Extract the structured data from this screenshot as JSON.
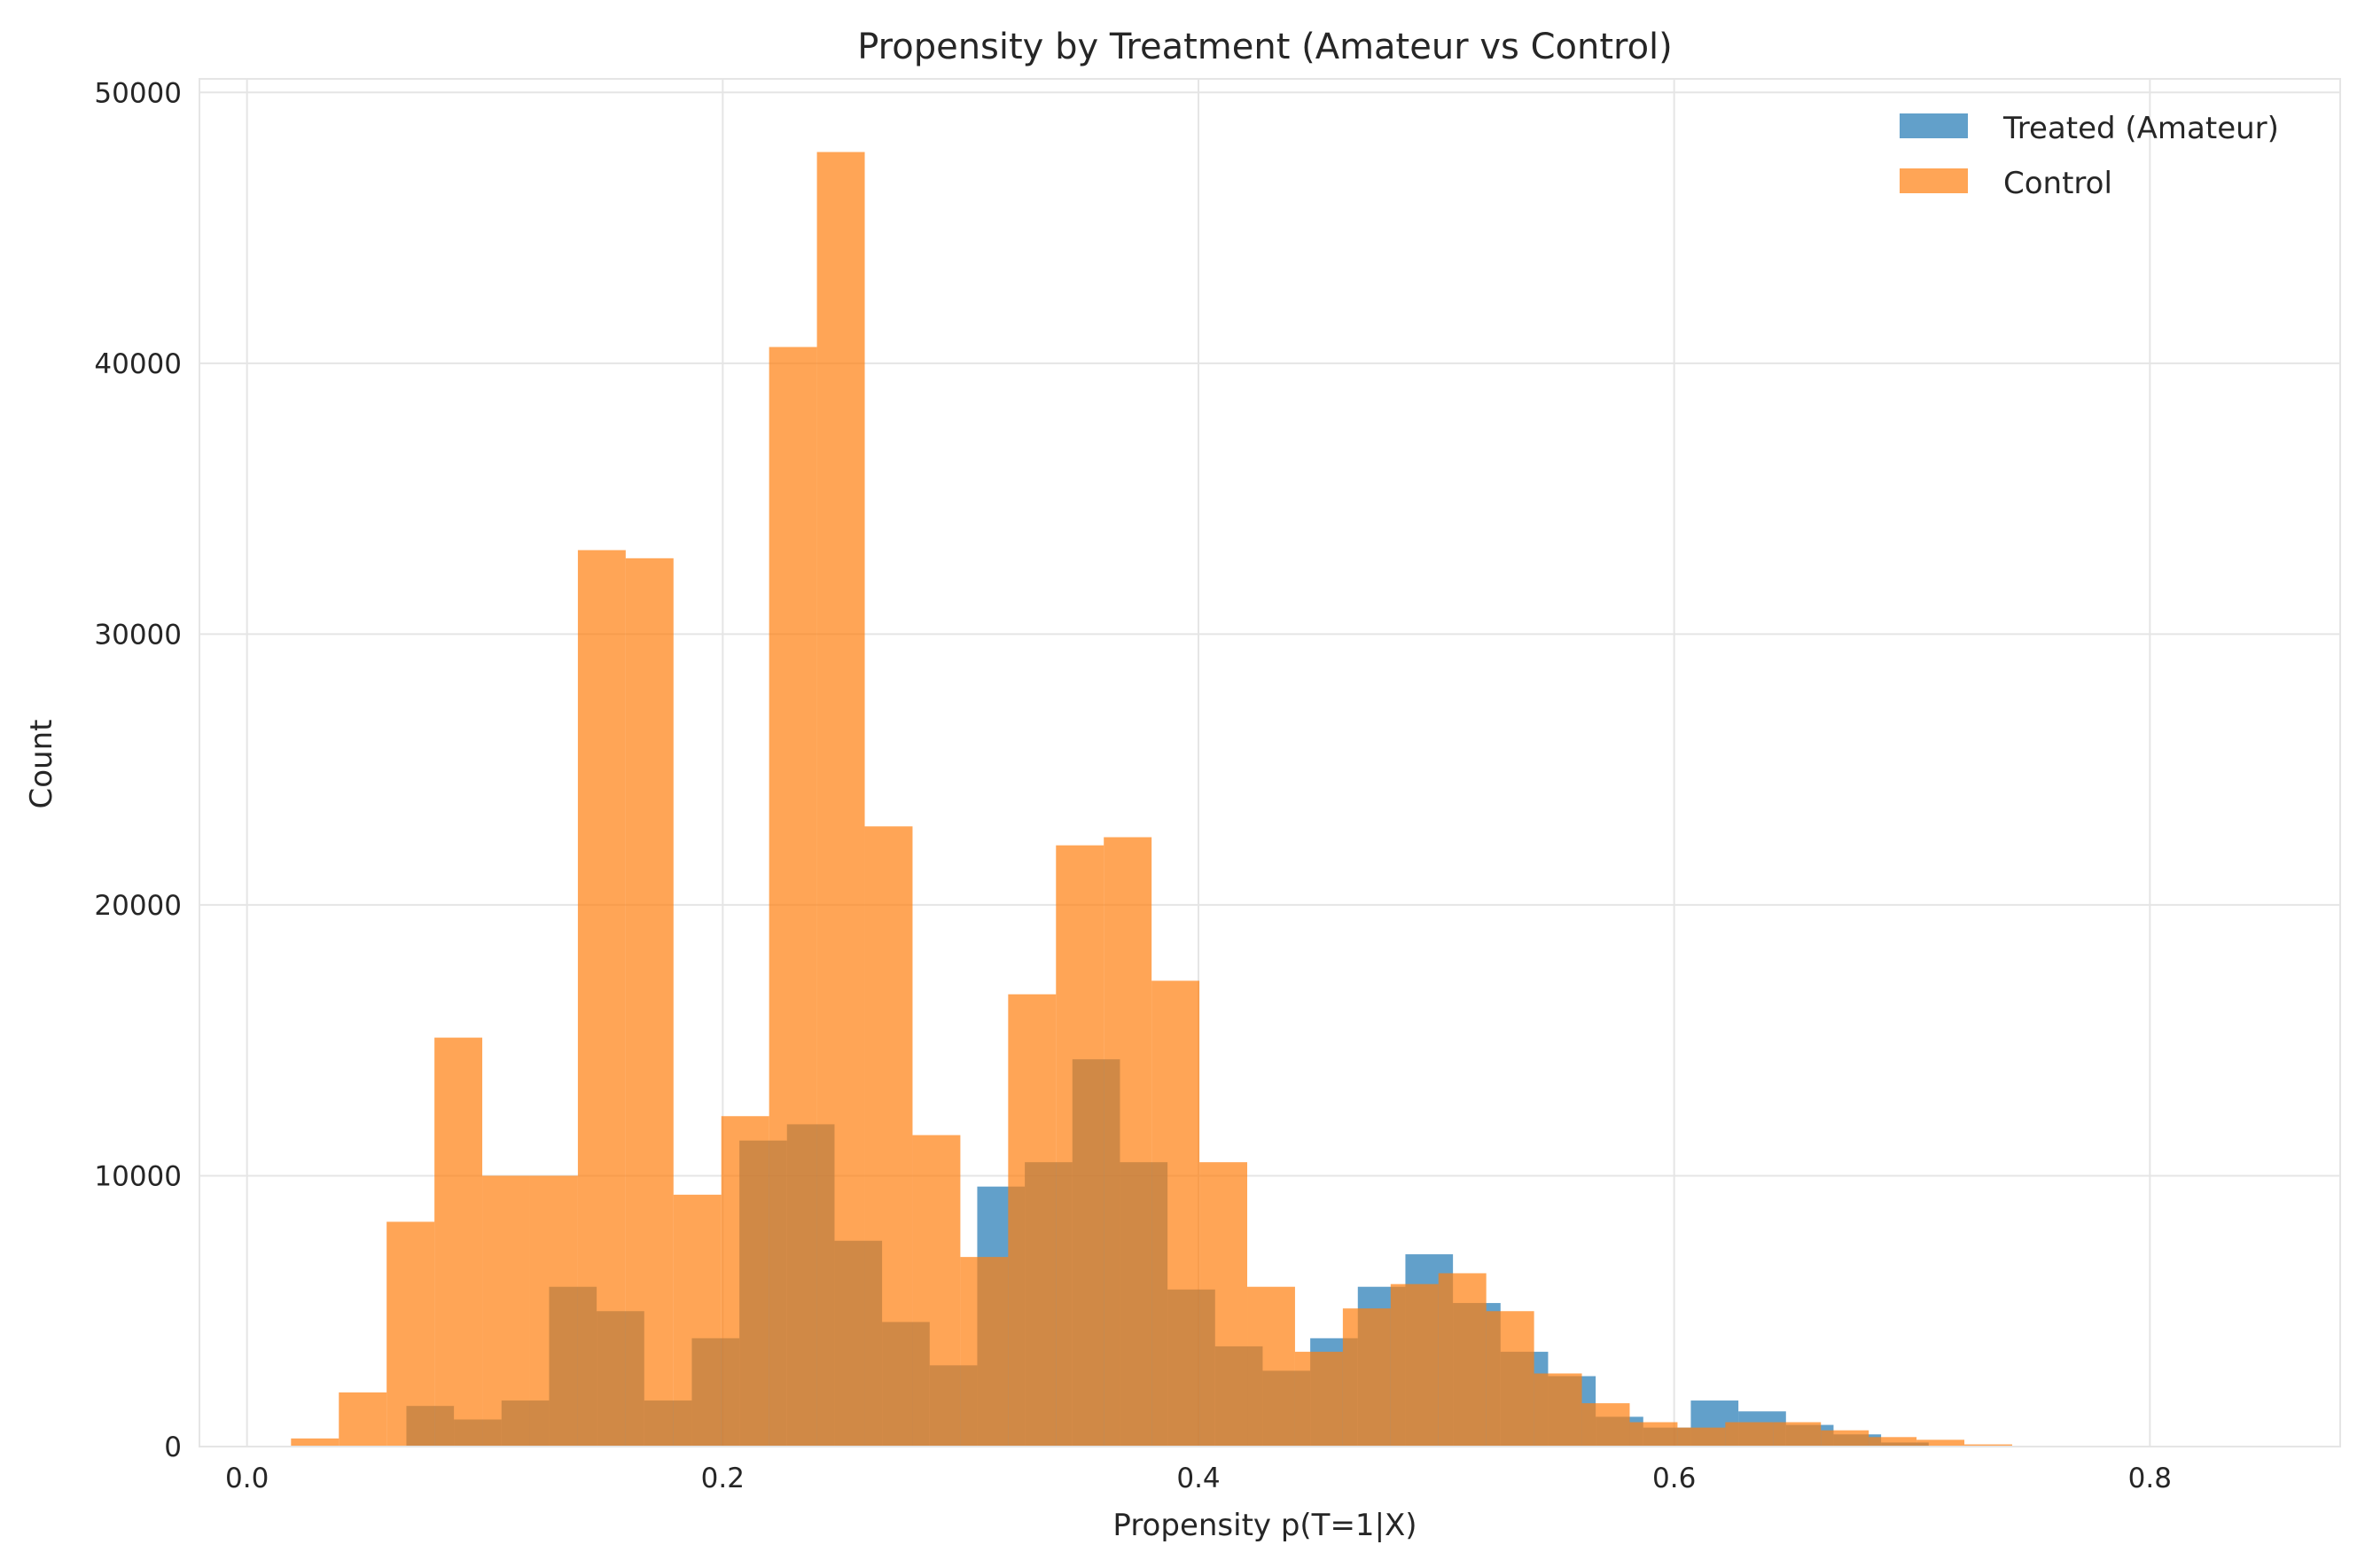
{
  "chart_data": {
    "type": "bar",
    "title": "Propensity by Treatment (Amateur vs Control)",
    "xlabel": "Propensity p(T=1|X)",
    "ylabel": "Count",
    "xlim": [
      -0.02,
      0.88
    ],
    "ylim": [
      0,
      50500
    ],
    "xticks": [
      0.0,
      0.2,
      0.4,
      0.6,
      0.8
    ],
    "xtick_labels": [
      "0.0",
      "0.2",
      "0.4",
      "0.6",
      "0.8"
    ],
    "yticks": [
      0,
      10000,
      20000,
      30000,
      40000,
      50000
    ],
    "ytick_labels": [
      "0",
      "10000",
      "20000",
      "30000",
      "40000",
      "50000"
    ],
    "grid": true,
    "legend_position": "top-right",
    "colors": {
      "treated": "#1f77b4",
      "control": "#ff7f0e",
      "overlap": "#d0894a",
      "grid": "#e5e5e5"
    },
    "series": [
      {
        "name": "Treated (Amateur)",
        "color": "#1f77b4",
        "opacity": 0.7,
        "bins": [
          [
            0.067,
            0.087,
            1500
          ],
          [
            0.087,
            0.107,
            1000
          ],
          [
            0.107,
            0.127,
            1700
          ],
          [
            0.127,
            0.147,
            5900
          ],
          [
            0.147,
            0.167,
            5000
          ],
          [
            0.167,
            0.187,
            1700
          ],
          [
            0.187,
            0.207,
            4000
          ],
          [
            0.207,
            0.227,
            11300
          ],
          [
            0.227,
            0.247,
            11900
          ],
          [
            0.247,
            0.267,
            7600
          ],
          [
            0.267,
            0.287,
            4600
          ],
          [
            0.287,
            0.307,
            3000
          ],
          [
            0.307,
            0.327,
            9600
          ],
          [
            0.327,
            0.347,
            10500
          ],
          [
            0.347,
            0.367,
            14300
          ],
          [
            0.367,
            0.387,
            10500
          ],
          [
            0.387,
            0.407,
            5800
          ],
          [
            0.407,
            0.427,
            3700
          ],
          [
            0.427,
            0.447,
            2800
          ],
          [
            0.447,
            0.467,
            4000
          ],
          [
            0.467,
            0.487,
            5900
          ],
          [
            0.487,
            0.507,
            7100
          ],
          [
            0.507,
            0.527,
            5300
          ],
          [
            0.527,
            0.547,
            3500
          ],
          [
            0.547,
            0.567,
            2600
          ],
          [
            0.567,
            0.587,
            1100
          ],
          [
            0.587,
            0.607,
            700
          ],
          [
            0.607,
            0.627,
            1700
          ],
          [
            0.627,
            0.647,
            1300
          ],
          [
            0.647,
            0.667,
            800
          ],
          [
            0.667,
            0.687,
            450
          ],
          [
            0.687,
            0.707,
            150
          ]
        ]
      },
      {
        "name": "Control",
        "color": "#ff7f0e",
        "opacity": 0.7,
        "bins": [
          [
            0.0185,
            0.0386,
            300
          ],
          [
            0.0386,
            0.0587,
            2000
          ],
          [
            0.0587,
            0.0788,
            8300
          ],
          [
            0.0788,
            0.0989,
            15100
          ],
          [
            0.0989,
            0.119,
            10000
          ],
          [
            0.119,
            0.1391,
            10000
          ],
          [
            0.1391,
            0.1592,
            33100
          ],
          [
            0.1592,
            0.1793,
            32800
          ],
          [
            0.1793,
            0.1994,
            9300
          ],
          [
            0.1994,
            0.2195,
            12200
          ],
          [
            0.2195,
            0.2396,
            40600
          ],
          [
            0.2396,
            0.2597,
            47800
          ],
          [
            0.2597,
            0.2798,
            22900
          ],
          [
            0.2798,
            0.2999,
            11500
          ],
          [
            0.2999,
            0.32,
            7000
          ],
          [
            0.32,
            0.3401,
            16700
          ],
          [
            0.3401,
            0.3602,
            22200
          ],
          [
            0.3602,
            0.3803,
            22500
          ],
          [
            0.3803,
            0.4004,
            17200
          ],
          [
            0.4004,
            0.4205,
            10500
          ],
          [
            0.4205,
            0.4406,
            5900
          ],
          [
            0.4406,
            0.4607,
            3500
          ],
          [
            0.4607,
            0.4808,
            5100
          ],
          [
            0.4808,
            0.5009,
            6000
          ],
          [
            0.5009,
            0.521,
            6400
          ],
          [
            0.521,
            0.5411,
            5000
          ],
          [
            0.5411,
            0.5612,
            2700
          ],
          [
            0.5612,
            0.5813,
            1600
          ],
          [
            0.5813,
            0.6014,
            900
          ],
          [
            0.6014,
            0.6215,
            700
          ],
          [
            0.6215,
            0.6416,
            900
          ],
          [
            0.6416,
            0.6617,
            900
          ],
          [
            0.6617,
            0.6818,
            600
          ],
          [
            0.6818,
            0.7019,
            350
          ],
          [
            0.7019,
            0.722,
            250
          ],
          [
            0.722,
            0.7421,
            80
          ]
        ]
      }
    ]
  }
}
